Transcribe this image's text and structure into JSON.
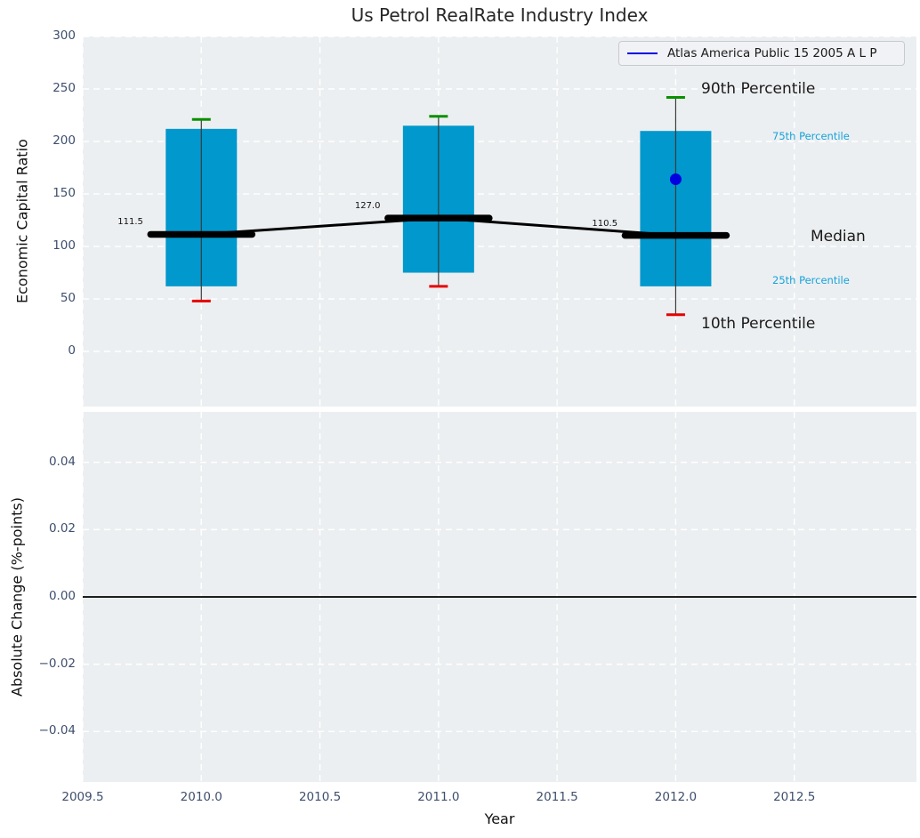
{
  "title": "Us Petrol RealRate Industry Index",
  "legend": {
    "label": "Atlas America Public 15 2005 A L P",
    "line_color": "#0000e1"
  },
  "chart_data": {
    "type": "boxplot",
    "title": "Us Petrol RealRate Industry Index",
    "xlabel": "Year",
    "xlim": [
      2009.5,
      2013.0
    ],
    "xticks": [
      2009.5,
      2010.0,
      2010.5,
      2011.0,
      2011.5,
      2012.0,
      2012.5
    ],
    "xtick_labels": [
      "2009.5",
      "2010.0",
      "2010.5",
      "2011.0",
      "2011.5",
      "2012.0",
      "2012.5"
    ],
    "grid": "white-dashed",
    "legend_position": "upper right",
    "panels": [
      {
        "name": "economic-capital-ratio",
        "ylabel": "Economic Capital Ratio",
        "ylim": [
          -52.5,
          300
        ],
        "yticks": [
          0,
          50,
          100,
          150,
          200,
          250,
          300
        ],
        "ytick_labels": [
          "0",
          "50",
          "100",
          "150",
          "200",
          "250",
          "300"
        ],
        "boxes": [
          {
            "x": 2010,
            "p10": 48,
            "p25": 62,
            "median": 111.5,
            "p75": 212,
            "p90": 221,
            "median_label": "111.5"
          },
          {
            "x": 2011,
            "p10": 62,
            "p25": 75,
            "median": 127.0,
            "p75": 215,
            "p90": 224,
            "median_label": "127.0"
          },
          {
            "x": 2012,
            "p10": 35,
            "p25": 62,
            "median": 110.5,
            "p75": 210,
            "p90": 242,
            "median_label": "110.5"
          }
        ],
        "median_line": {
          "x": [
            2010,
            2011,
            2012
          ],
          "y": [
            111.5,
            127.0,
            110.5
          ]
        },
        "series_point": {
          "name": "Atlas America Public 15 2005 A L P",
          "x": 2012,
          "y": 164
        },
        "annotations": [
          {
            "text": "90th Percentile",
            "style": "big"
          },
          {
            "text": "75th Percentile",
            "style": "cyan"
          },
          {
            "text": "Median",
            "style": "big"
          },
          {
            "text": "25th Percentile",
            "style": "cyan"
          },
          {
            "text": "10th Percentile",
            "style": "big"
          }
        ]
      },
      {
        "name": "absolute-change",
        "ylabel": "Absolute Change (%-points)",
        "ylim": [
          -0.055,
          0.055
        ],
        "yticks": [
          0.04,
          0.02,
          0.0,
          -0.02,
          -0.04
        ],
        "ytick_labels": [
          "0.04",
          "0.02",
          "0.00",
          "−0.02",
          "−0.04"
        ],
        "zero_line": 0.0
      }
    ],
    "colors": {
      "box_fill": "#0098cd",
      "whisker": "#3a3a3a",
      "p90_cap": "#089000",
      "p10_cap": "#e60000",
      "median": "#000000",
      "point": "#0000e1",
      "grid": "#ffffff",
      "panel_bg": "#eceff1",
      "tick_text": "#3e4f6d",
      "cyan_text": "#17a2db"
    }
  }
}
